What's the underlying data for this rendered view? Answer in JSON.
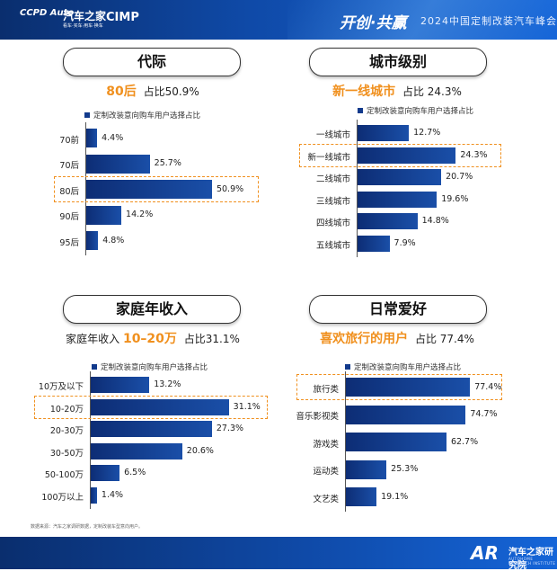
{
  "header": {
    "logo1": "CCPD Auto",
    "logo2": "汽车之家",
    "logo2_sub": "看车·买车·用车·换车",
    "logo3": "CIMP",
    "event_title": "开创·共赢",
    "event_subtitle": "2024中国定制改装汽车峰会"
  },
  "colors": {
    "bar": "#123a8c",
    "accent": "#f0901e",
    "banner": "#0f4aa8"
  },
  "chart_data": [
    {
      "type": "bar",
      "title": "代际",
      "headline": {
        "highlight": "80后",
        "share": "占比50.9%"
      },
      "legend": "定制改装意向购车用户选择占比",
      "categories": [
        "70前",
        "70后",
        "80后",
        "90后",
        "95后"
      ],
      "values": [
        4.4,
        25.7,
        50.9,
        14.2,
        4.8
      ],
      "labels": [
        "4.4%",
        "25.7%",
        "50.9%",
        "14.2%",
        "4.8%"
      ],
      "highlight_index": 2,
      "max": 60
    },
    {
      "type": "bar",
      "title": "城市级别",
      "headline": {
        "highlight": "新一线城市",
        "share": "占比 24.3%"
      },
      "legend": "定制改装意向购车用户选择占比",
      "categories": [
        "一线城市",
        "新一线城市",
        "二线城市",
        "三线城市",
        "四线城市",
        "五线城市"
      ],
      "values": [
        12.7,
        24.3,
        20.7,
        19.6,
        14.8,
        7.9
      ],
      "labels": [
        "12.7%",
        "24.3%",
        "20.7%",
        "19.6%",
        "14.8%",
        "7.9%"
      ],
      "highlight_index": 1,
      "max": 26
    },
    {
      "type": "bar",
      "title": "家庭年收入",
      "headline": {
        "prefix": "家庭年收入",
        "highlight": "10–20万",
        "share": "占比31.1%"
      },
      "legend": "定制改装意向购车用户选择占比",
      "categories": [
        "10万及以下",
        "10-20万",
        "20-30万",
        "30-50万",
        "50-100万",
        "100万以上"
      ],
      "values": [
        13.2,
        31.1,
        27.3,
        20.6,
        6.5,
        1.4
      ],
      "labels": [
        "13.2%",
        "31.1%",
        "27.3%",
        "20.6%",
        "6.5%",
        "1.4%"
      ],
      "highlight_index": 1,
      "max": 34
    },
    {
      "type": "bar",
      "title": "日常爱好",
      "headline": {
        "highlight": "喜欢旅行的用户",
        "share": "占比 77.4%"
      },
      "legend": "定制改装意向购车用户选择占比",
      "categories": [
        "旅行类",
        "音乐影视类",
        "游戏类",
        "运动类",
        "文艺类"
      ],
      "values": [
        77.4,
        74.7,
        62.7,
        25.3,
        19.1
      ],
      "labels": [
        "77.4%",
        "74.7%",
        "62.7%",
        "25.3%",
        "19.1%"
      ],
      "highlight_index": 0,
      "max": 84
    }
  ],
  "footer": {
    "source": "数据来源：汽车之家调研数据，定制改装车型意向用户。",
    "brand_mark": "AR",
    "brand_name": "汽车之家研究院",
    "brand_sub": "AUTOHOME RESEARCH INSTITUTE"
  }
}
